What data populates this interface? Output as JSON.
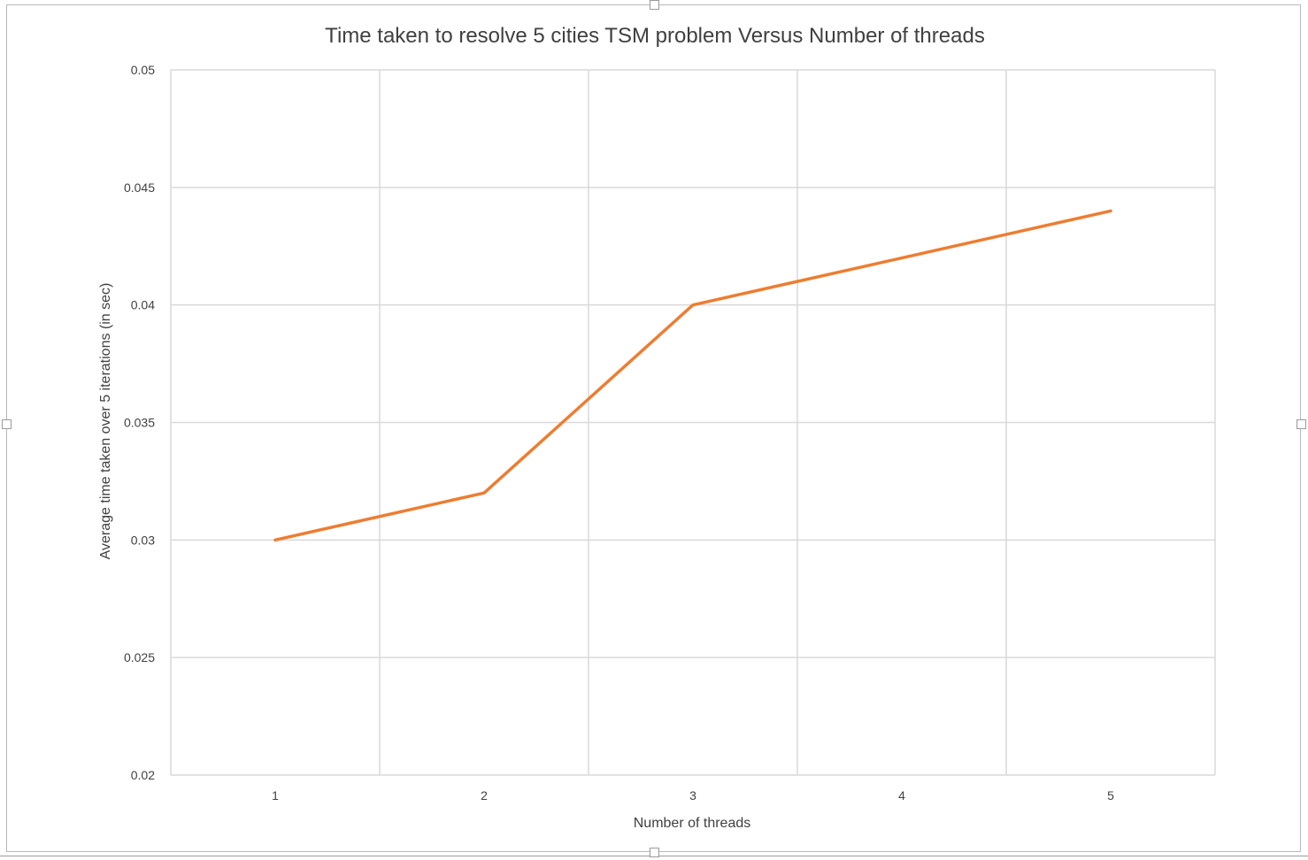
{
  "chart_data": {
    "type": "line",
    "title": "Time taken to resolve 5 cities TSM problem Versus Number of threads",
    "xlabel": "Number of threads",
    "ylabel": "Average time taken over 5 iterations (in sec)",
    "categories": [
      "1",
      "2",
      "3",
      "4",
      "5"
    ],
    "series": [
      {
        "values": [
          0.03,
          0.032,
          0.04,
          0.042,
          0.044
        ]
      }
    ],
    "ylim": [
      0.02,
      0.05
    ],
    "yticks": [
      0.02,
      0.025,
      0.03,
      0.035,
      0.04,
      0.045,
      0.05
    ],
    "ytick_labels": [
      "0.02",
      "0.025",
      "0.03",
      "0.035",
      "0.04",
      "0.045",
      "0.05"
    ],
    "grid": true,
    "legend": "none",
    "colors": {
      "line": "#ED7D31",
      "grid": "#d9d9d9",
      "text": "#404040"
    }
  }
}
